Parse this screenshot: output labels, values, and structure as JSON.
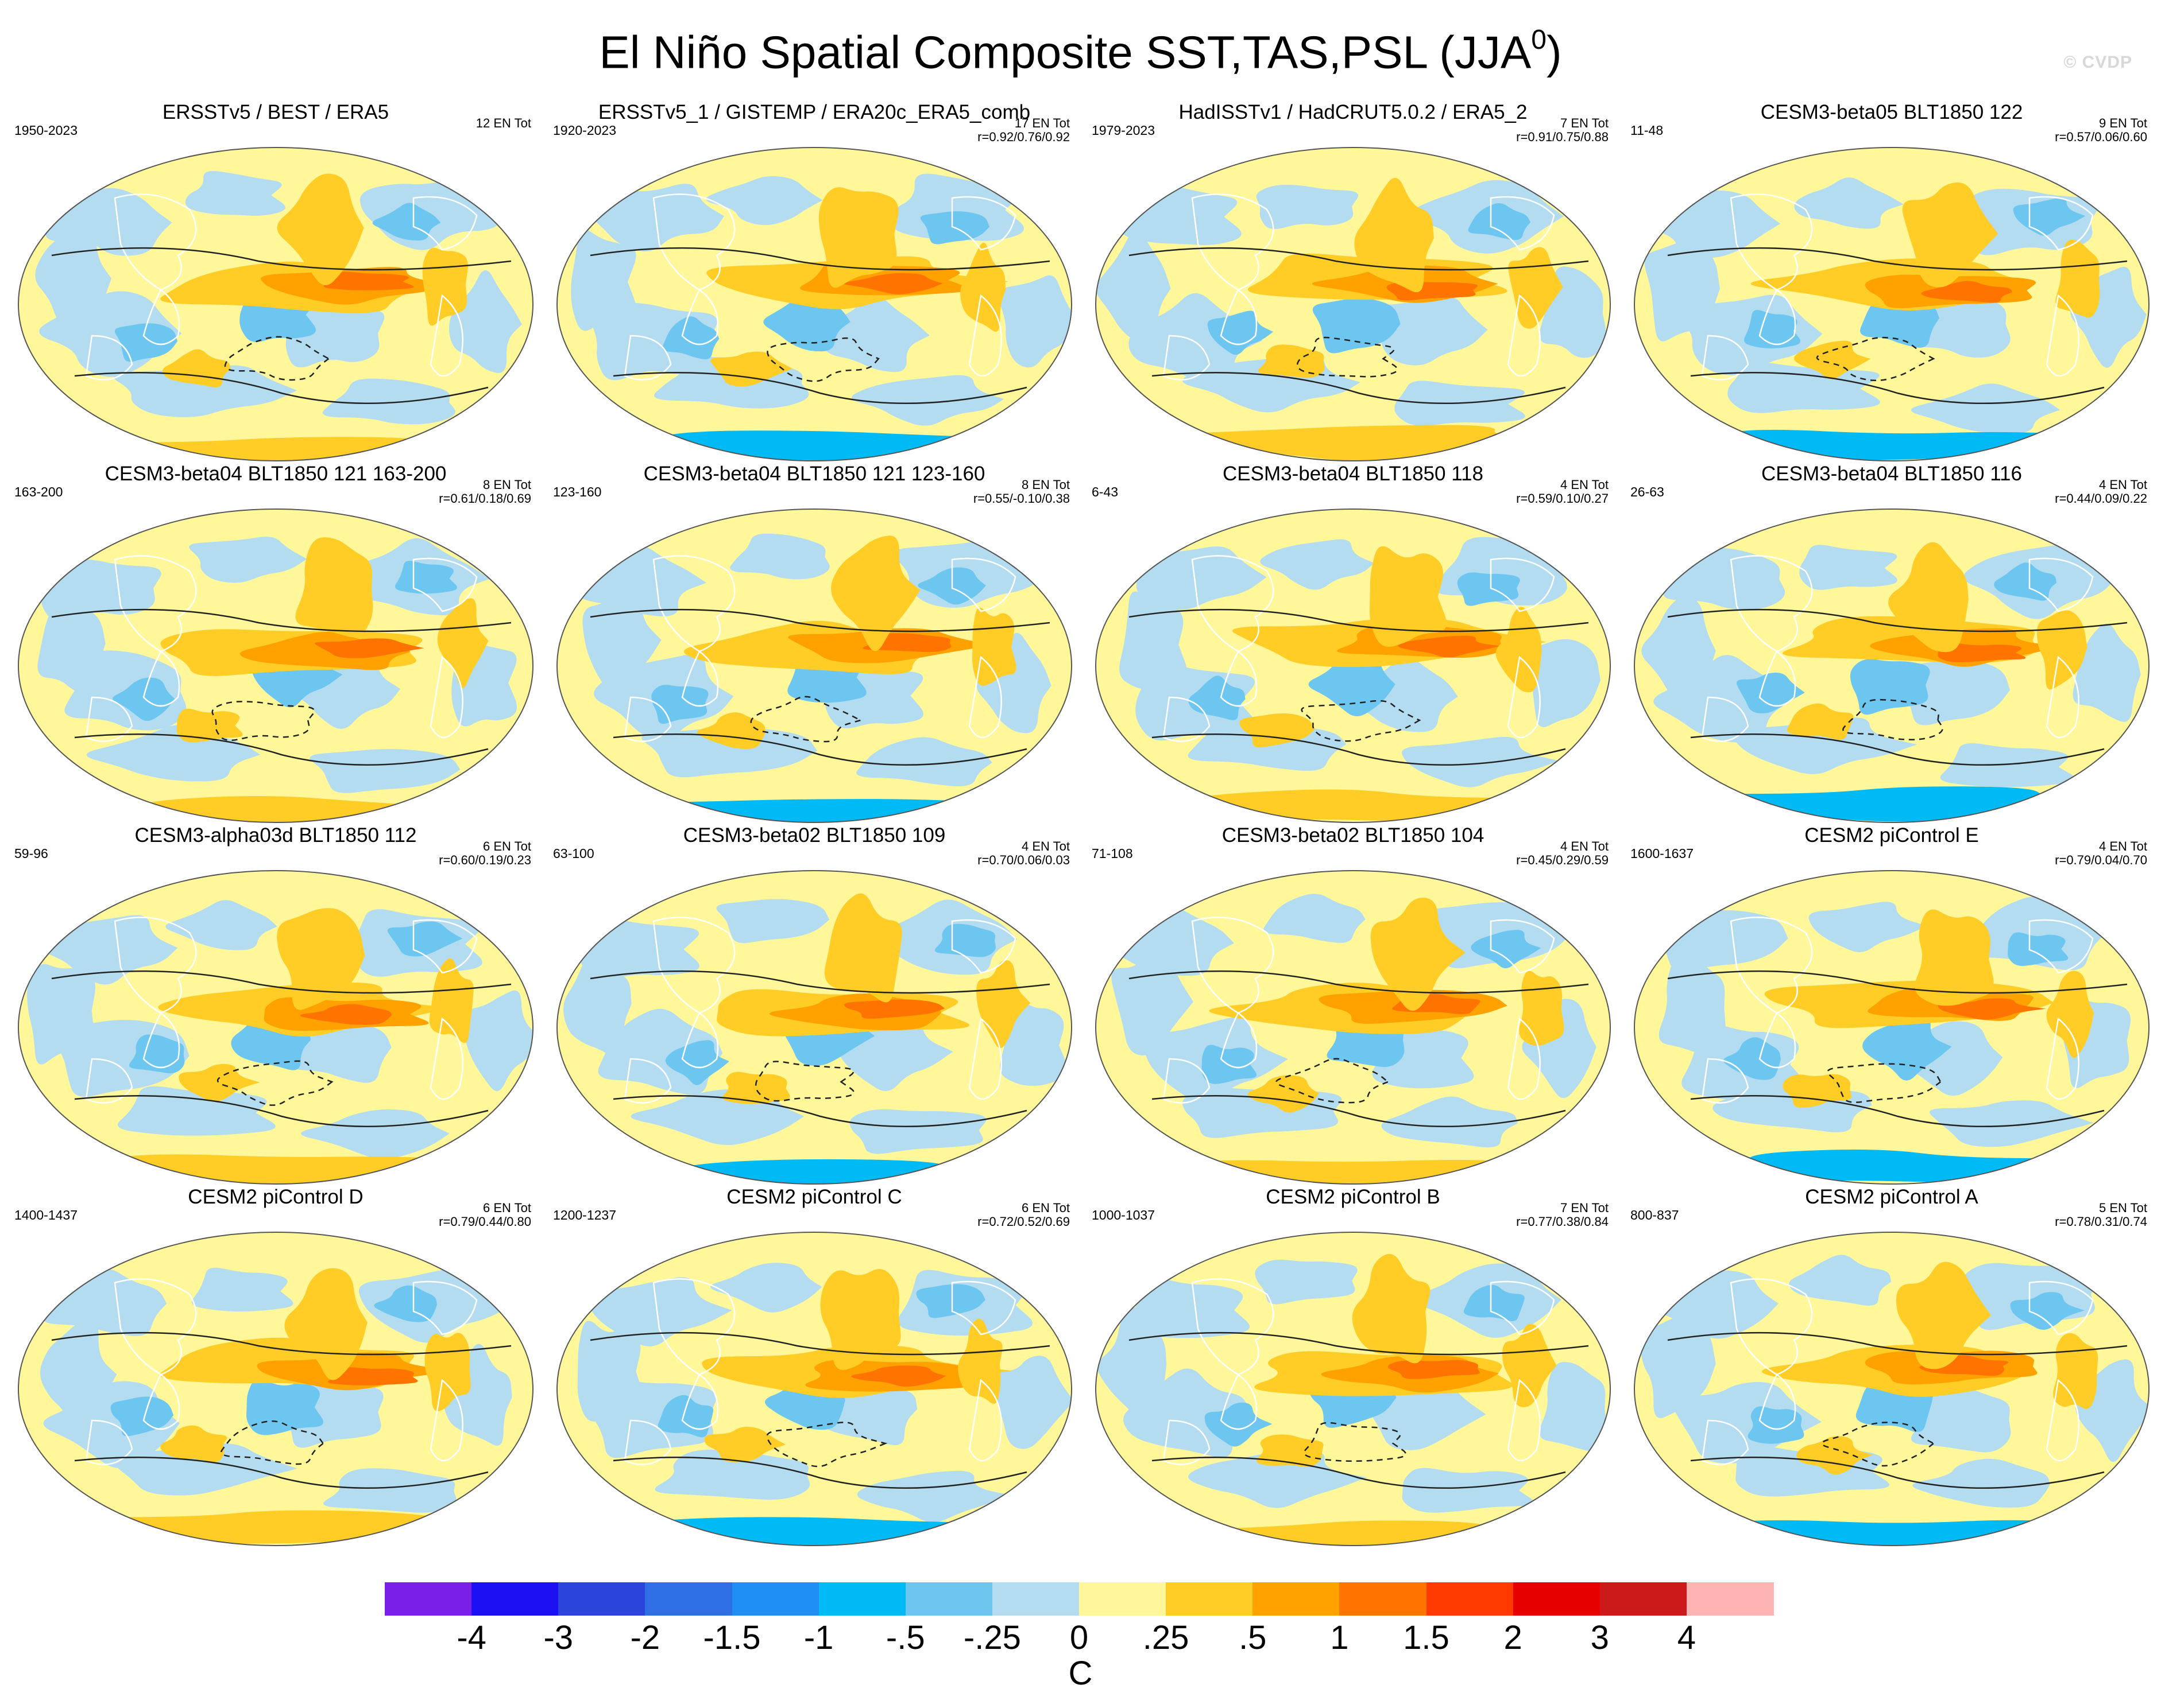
{
  "title": "El Niño Spatial Composite SST,TAS,PSL (JJA",
  "title_superscript": "0",
  "title_close": ")",
  "watermark": "© CVDP",
  "chart_data": {
    "type": "heatmap",
    "description_kind": "composite maps",
    "variable_units": "C",
    "colorbar": {
      "labels": [
        "-4",
        "-3",
        "-2",
        "-1.5",
        "-1",
        "-.5",
        "-.25",
        "0",
        ".25",
        ".5",
        "1",
        "1.5",
        "2",
        "3",
        "4"
      ],
      "levels": [
        -4,
        -3,
        -2,
        -1.5,
        -1,
        -0.5,
        -0.25,
        0,
        0.25,
        0.5,
        1,
        1.5,
        2,
        3,
        4
      ],
      "colors": [
        "#7a1fe8",
        "#1a10f2",
        "#2b45dc",
        "#2f6fe6",
        "#1f8ef5",
        "#00baf5",
        "#6cc6f0",
        "#b4dcf0",
        "#fff79a",
        "#ffcd26",
        "#ffa200",
        "#ff7400",
        "#ff3a00",
        "#e60000",
        "#cc1a1a",
        "#ffb4b4"
      ],
      "units": "C"
    },
    "panels": [
      {
        "title": "ERSSTv5 / BEST / ERA5",
        "years": "1950-2023",
        "count": "12 EN Tot",
        "stat": "",
        "pattern": 0.0
      },
      {
        "title": "ERSSTv5_1 / GISTEMP / ERA20c_ERA5_comb",
        "years": "1920-2023",
        "count": "17 EN Tot",
        "stat": "r=0.92/0.76/0.92",
        "pattern": 0.1
      },
      {
        "title": "HadISSTv1 / HadCRUT5.0.2 / ERA5_2",
        "years": "1979-2023",
        "count": "7 EN Tot",
        "stat": "r=0.91/0.75/0.88",
        "pattern": 0.2
      },
      {
        "title": "CESM3-beta05 BLT1850 122",
        "years": "11-48",
        "count": "9 EN Tot",
        "stat": "r=0.57/0.06/0.60",
        "pattern": 0.3
      },
      {
        "title": "CESM3-beta04 BLT1850 121 163-200",
        "years": "163-200",
        "count": "8 EN Tot",
        "stat": "r=0.61/0.18/0.69",
        "pattern": 0.4
      },
      {
        "title": "CESM3-beta04 BLT1850 121 123-160",
        "years": "123-160",
        "count": "8 EN Tot",
        "stat": "r=0.55/-0.10/0.38",
        "pattern": 0.5
      },
      {
        "title": "CESM3-beta04 BLT1850 118",
        "years": "6-43",
        "count": "4 EN Tot",
        "stat": "r=0.59/0.10/0.27",
        "pattern": 0.6
      },
      {
        "title": "CESM3-beta04 BLT1850 116",
        "years": "26-63",
        "count": "4 EN Tot",
        "stat": "r=0.44/0.09/0.22",
        "pattern": 0.7
      },
      {
        "title": "CESM3-alpha03d BLT1850 112",
        "years": "59-96",
        "count": "6 EN Tot",
        "stat": "r=0.60/0.19/0.23",
        "pattern": 0.8
      },
      {
        "title": "CESM3-beta02 BLT1850 109",
        "years": "63-100",
        "count": "4 EN Tot",
        "stat": "r=0.70/0.06/0.03",
        "pattern": 0.9
      },
      {
        "title": "CESM3-beta02 BLT1850 104",
        "years": "71-108",
        "count": "4 EN Tot",
        "stat": "r=0.45/0.29/0.59",
        "pattern": 1.0
      },
      {
        "title": "CESM2 piControl E",
        "years": "1600-1637",
        "count": "4 EN Tot",
        "stat": "r=0.79/0.04/0.70",
        "pattern": 1.1
      },
      {
        "title": "CESM2 piControl D",
        "years": "1400-1437",
        "count": "6 EN Tot",
        "stat": "r=0.79/0.44/0.80",
        "pattern": 1.2
      },
      {
        "title": "CESM2 piControl C",
        "years": "1200-1237",
        "count": "6 EN Tot",
        "stat": "r=0.72/0.52/0.69",
        "pattern": 1.3
      },
      {
        "title": "CESM2 piControl B",
        "years": "1000-1037",
        "count": "7 EN Tot",
        "stat": "r=0.77/0.38/0.84",
        "pattern": 1.4
      },
      {
        "title": "CESM2 piControl A",
        "years": "800-837",
        "count": "5 EN Tot",
        "stat": "r=0.78/0.31/0.74",
        "pattern": 1.5
      }
    ]
  }
}
